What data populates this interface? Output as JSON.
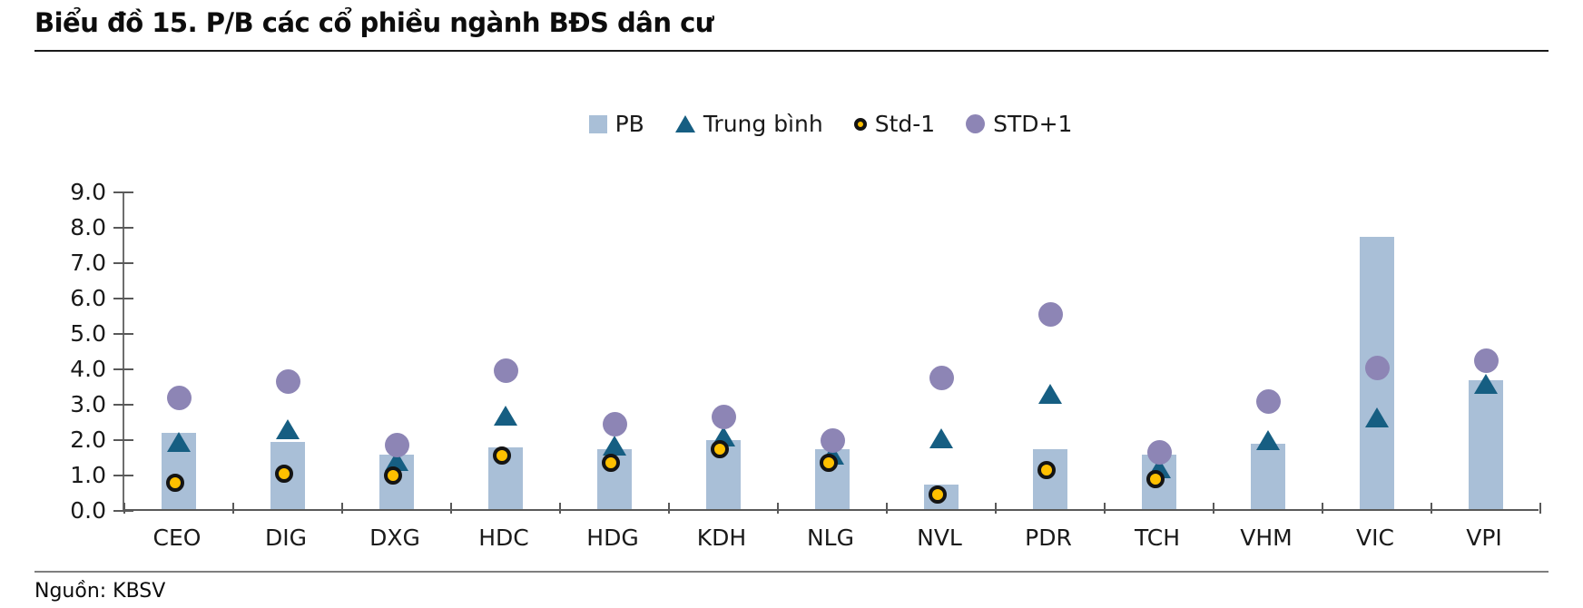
{
  "title": "Biểu đồ 15. P/B các cổ phiều ngành BĐS dân cư",
  "source": "Nguồn: KBSV",
  "colors": {
    "bar": "#a9bfd7",
    "mean_triangle": "#165e82",
    "std_minus1_fill": "#ffc000",
    "std_minus1_ring": "#141414",
    "std_plus1": "#8d85b5",
    "axis": "#595959"
  },
  "legend": [
    {
      "label": "PB",
      "marker": "square"
    },
    {
      "label": "Trung bình",
      "marker": "triangle"
    },
    {
      "label": "Std-1",
      "marker": "circle-ringed"
    },
    {
      "label": "STD+1",
      "marker": "circle"
    }
  ],
  "chart_data": {
    "type": "bar",
    "title": "Biểu đồ 15. P/B các cổ phiều ngành BĐS dân cư",
    "categories": [
      "CEO",
      "DIG",
      "DXG",
      "HDC",
      "HDG",
      "KDH",
      "NLG",
      "NVL",
      "PDR",
      "TCH",
      "VHM",
      "VIC",
      "VPI"
    ],
    "series": [
      {
        "name": "PB",
        "type": "bar",
        "values": [
          2.15,
          1.9,
          1.55,
          1.75,
          1.7,
          1.95,
          1.7,
          0.7,
          1.7,
          1.55,
          1.85,
          7.7,
          3.65
        ]
      },
      {
        "name": "Trung bình",
        "type": "scatter-triangle",
        "values": [
          1.95,
          2.3,
          1.4,
          2.7,
          1.85,
          2.1,
          1.6,
          2.05,
          3.3,
          1.2,
          2.0,
          2.65,
          3.6
        ]
      },
      {
        "name": "Std-1",
        "type": "scatter-circle",
        "values": [
          0.7,
          0.95,
          0.9,
          1.45,
          1.25,
          1.65,
          1.25,
          0.35,
          1.05,
          0.8,
          null,
          null,
          null
        ]
      },
      {
        "name": "STD+1",
        "type": "scatter-circle",
        "values": [
          3.2,
          3.65,
          1.85,
          3.95,
          2.45,
          2.65,
          2.0,
          3.75,
          5.55,
          1.65,
          3.1,
          4.05,
          4.25
        ]
      }
    ],
    "xlabel": "",
    "ylabel": "",
    "ylim": [
      0,
      9
    ],
    "ytick_step": 1,
    "ytick_labels": [
      "0.0",
      "1.0",
      "2.0",
      "3.0",
      "4.0",
      "5.0",
      "6.0",
      "7.0",
      "8.0",
      "9.0"
    ],
    "grid": false,
    "legend_position": "top-center"
  }
}
